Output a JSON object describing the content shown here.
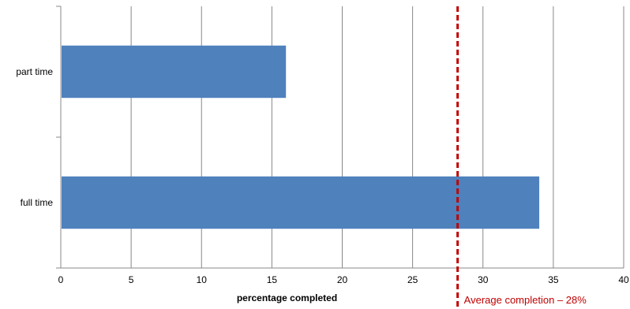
{
  "chart_data": {
    "type": "bar",
    "orientation": "horizontal",
    "categories": [
      "part time",
      "full time"
    ],
    "values": [
      16,
      34
    ],
    "xlabel": "percentage completed",
    "ylabel": "",
    "xlim": [
      0,
      40
    ],
    "x_ticks": [
      "0",
      "5",
      "10",
      "15",
      "20",
      "25",
      "30",
      "35",
      "40"
    ],
    "grid": "vertical",
    "legend": "none",
    "colors": {
      "bar": "#4F81BD",
      "reference_line": "#C00000",
      "grid": "#888888"
    },
    "reference_line": {
      "value": 28.2,
      "style": "dashed",
      "label": "Average completion – 28%"
    }
  }
}
